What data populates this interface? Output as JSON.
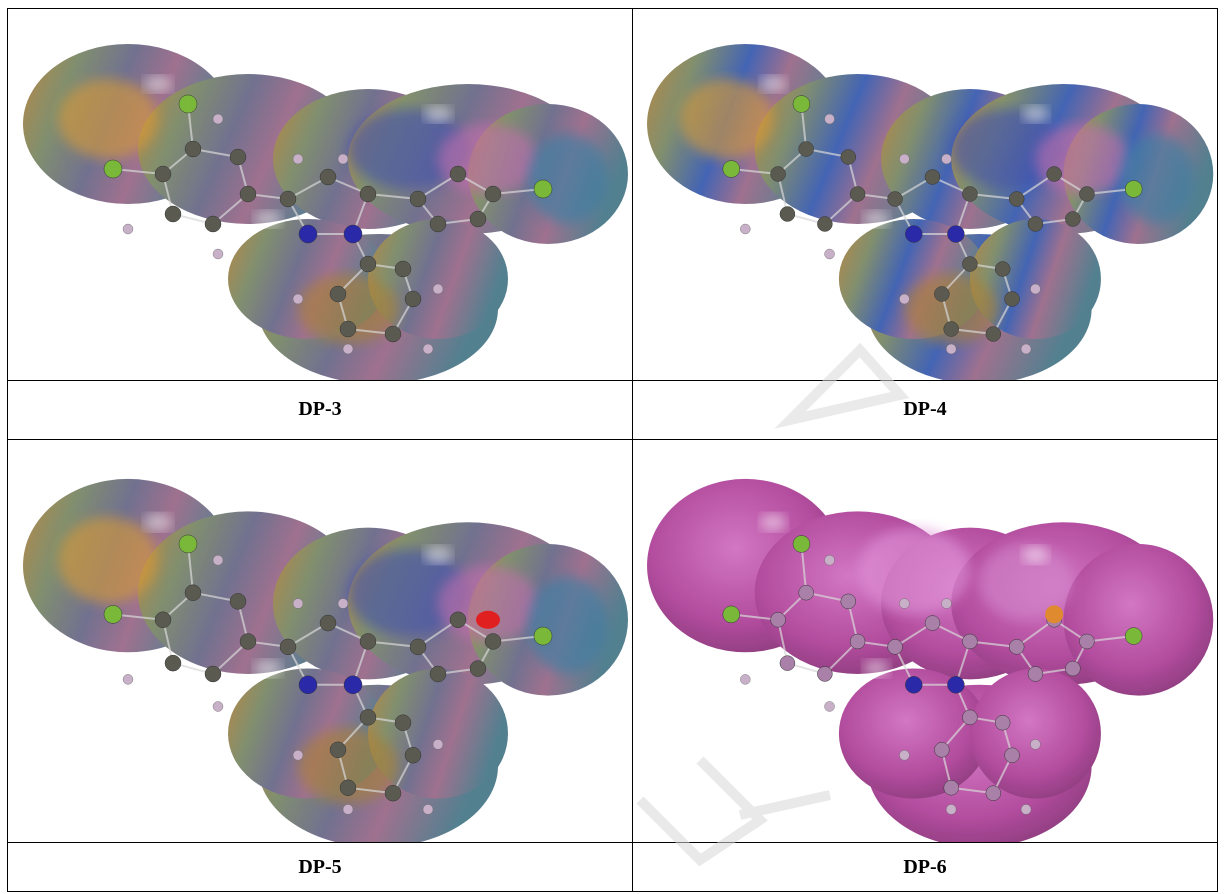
{
  "figure": {
    "panels": [
      {
        "label": "DP-3",
        "theme": "multicolor"
      },
      {
        "label": "DP-4",
        "theme": "multicolor-blue"
      },
      {
        "label": "DP-5",
        "theme": "multicolor"
      },
      {
        "label": "DP-6",
        "theme": "magenta"
      }
    ]
  },
  "colors": {
    "nitrogen": "#2a2aa8",
    "carbon": "#5a5a50",
    "hydrogen": "#c8b0c8",
    "chlorine": "#7ab83a",
    "oxygen": "#e02020",
    "sulfur": "#e08a30",
    "magenta_surface": "#b0449a"
  }
}
